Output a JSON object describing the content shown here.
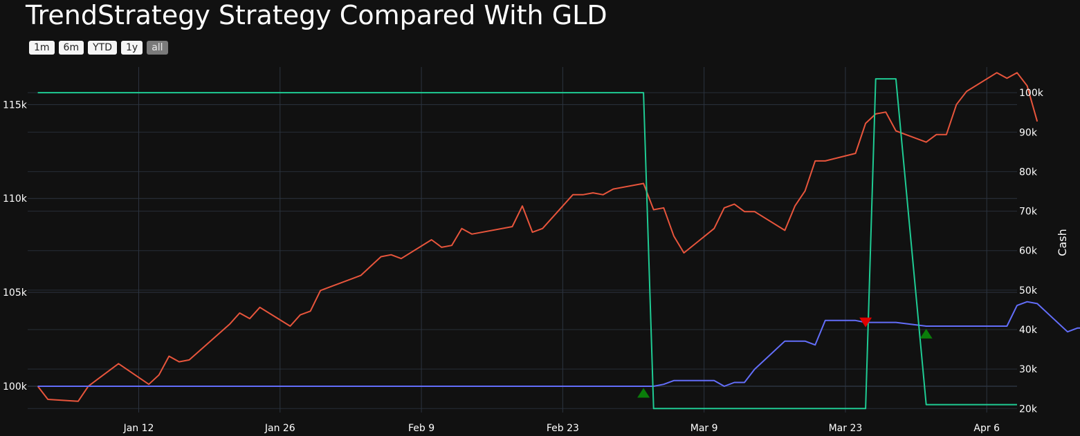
{
  "title": "TrendStrategy Strategy Compared With GLD",
  "range_buttons": [
    {
      "label": "1m",
      "active": false
    },
    {
      "label": "6m",
      "active": false
    },
    {
      "label": "YTD",
      "active": false
    },
    {
      "label": "1y",
      "active": false
    },
    {
      "label": "all",
      "active": true
    }
  ],
  "colors": {
    "background": "#111111",
    "grid": "#2c3440",
    "gld": "#e8553c",
    "strategy": "#636efa",
    "cash": "#1fcc94",
    "buy_marker": "#0a7d0a",
    "sell_marker": "#e00000"
  },
  "chart_data": {
    "type": "line",
    "x_ticks": [
      "Jan 12",
      "Jan 26",
      "Feb 9",
      "Feb 23",
      "Mar 9",
      "Mar 23",
      "Apr 6"
    ],
    "y_left": {
      "ticks": [
        "100k",
        "105k",
        "110k",
        "115k"
      ],
      "range": [
        98600,
        117000
      ]
    },
    "y_right": {
      "title": "Cash",
      "ticks": [
        "20k",
        "30k",
        "40k",
        "50k",
        "60k",
        "70k",
        "80k",
        "90k",
        "100k"
      ],
      "range": [
        19000,
        106500
      ]
    },
    "grid": true,
    "series": [
      {
        "key": "gld",
        "axis": "left",
        "x": [
          "2025-01-02",
          "2025-01-03",
          "2025-01-06",
          "2025-01-07",
          "2025-01-08",
          "2025-01-10",
          "2025-01-13",
          "2025-01-14",
          "2025-01-15",
          "2025-01-16",
          "2025-01-17",
          "2025-01-21",
          "2025-01-22",
          "2025-01-23",
          "2025-01-24",
          "2025-01-27",
          "2025-01-28",
          "2025-01-29",
          "2025-01-30",
          "2025-01-31",
          "2025-02-03",
          "2025-02-04",
          "2025-02-05",
          "2025-02-06",
          "2025-02-07",
          "2025-02-10",
          "2025-02-11",
          "2025-02-12",
          "2025-02-13",
          "2025-02-14",
          "2025-02-18",
          "2025-02-19",
          "2025-02-20",
          "2025-02-21",
          "2025-02-24",
          "2025-02-25",
          "2025-02-26",
          "2025-02-27",
          "2025-02-28",
          "2025-03-03",
          "2025-03-04",
          "2025-03-05",
          "2025-03-06",
          "2025-03-07",
          "2025-03-10",
          "2025-03-11",
          "2025-03-12",
          "2025-03-13",
          "2025-03-14",
          "2025-03-17",
          "2025-03-18",
          "2025-03-19",
          "2025-03-20",
          "2025-03-21",
          "2025-03-24",
          "2025-03-25",
          "2025-03-26",
          "2025-03-27",
          "2025-03-28",
          "2025-03-31",
          "2025-04-01",
          "2025-04-02",
          "2025-04-03",
          "2025-04-04",
          "2025-04-07"
        ],
        "values": [
          100000,
          99300,
          99200,
          100000,
          100400,
          101200,
          100100,
          100600,
          101600,
          101300,
          101400,
          103300,
          103900,
          103600,
          104200,
          103200,
          103800,
          104000,
          105100,
          105300,
          105900,
          106400,
          106900,
          107000,
          106800,
          107800,
          107400,
          107500,
          108400,
          108100,
          108500,
          109600,
          108200,
          108400,
          110200,
          110200,
          110300,
          110200,
          110500,
          110800,
          109400,
          109500,
          108000,
          107100,
          108400,
          109500,
          109700,
          109300,
          109300,
          108300,
          109600,
          110400,
          112000,
          112000,
          112400,
          114000,
          114500,
          114600,
          113600,
          113000,
          113400,
          113400,
          115000,
          115700,
          116700
        ],
        "extra_after": [
          116400,
          116700,
          116000,
          114100
        ]
      },
      {
        "key": "strategy",
        "axis": "left",
        "x": [
          "2025-01-02",
          "2025-01-03",
          "2025-01-06",
          "2025-01-07",
          "2025-01-08",
          "2025-01-10",
          "2025-01-13",
          "2025-01-14",
          "2025-01-15",
          "2025-01-16",
          "2025-01-17",
          "2025-01-21",
          "2025-01-22",
          "2025-01-23",
          "2025-01-24",
          "2025-01-27",
          "2025-01-28",
          "2025-01-29",
          "2025-01-30",
          "2025-01-31",
          "2025-02-03",
          "2025-02-04",
          "2025-02-05",
          "2025-02-06",
          "2025-02-07",
          "2025-02-10",
          "2025-02-11",
          "2025-02-12",
          "2025-02-13",
          "2025-02-14",
          "2025-02-18",
          "2025-02-19",
          "2025-02-20",
          "2025-02-21",
          "2025-02-24",
          "2025-02-25",
          "2025-02-26",
          "2025-02-27",
          "2025-02-28",
          "2025-03-03",
          "2025-03-04",
          "2025-03-05",
          "2025-03-06",
          "2025-03-07",
          "2025-03-10",
          "2025-03-11",
          "2025-03-12",
          "2025-03-13",
          "2025-03-14",
          "2025-03-17",
          "2025-03-18",
          "2025-03-19",
          "2025-03-20",
          "2025-03-21",
          "2025-03-24",
          "2025-03-25",
          "2025-03-26",
          "2025-03-27",
          "2025-03-28",
          "2025-03-31",
          "2025-04-01",
          "2025-04-02",
          "2025-04-03",
          "2025-04-04",
          "2025-04-07"
        ],
        "values": [
          100000,
          100000,
          100000,
          100000,
          100000,
          100000,
          100000,
          100000,
          100000,
          100000,
          100000,
          100000,
          100000,
          100000,
          100000,
          100000,
          100000,
          100000,
          100000,
          100000,
          100000,
          100000,
          100000,
          100000,
          100000,
          100000,
          100000,
          100000,
          100000,
          100000,
          100000,
          100000,
          100000,
          100000,
          100000,
          100000,
          100000,
          100000,
          100000,
          100000,
          100000,
          100100,
          100300,
          100300,
          100300,
          100000,
          100200,
          100200,
          100900,
          102400,
          102400,
          102400,
          102200,
          103500,
          103500,
          103400,
          103400,
          103400,
          103400,
          103200,
          103200,
          103200,
          103200,
          103200,
          103200
        ],
        "extra_after": [
          103200,
          104300,
          104500,
          104400,
          102900,
          103100,
          103100,
          103100,
          101800
        ]
      },
      {
        "key": "cash",
        "axis": "right",
        "shape": "step",
        "x": [
          "2025-01-02",
          "2025-03-03",
          "2025-03-04",
          "2025-03-25",
          "2025-03-26",
          "2025-03-28",
          "2025-03-31",
          "2025-04-09"
        ],
        "values": [
          100000,
          100000,
          20000,
          20000,
          103500,
          103500,
          21000,
          21000
        ]
      }
    ],
    "markers": [
      {
        "kind": "buy",
        "x": "2025-03-03",
        "y": 99650,
        "axis": "left"
      },
      {
        "kind": "sell",
        "x": "2025-03-25",
        "y": 103400,
        "axis": "left"
      },
      {
        "kind": "buy",
        "x": "2025-03-31",
        "y": 102800,
        "axis": "left"
      }
    ]
  }
}
